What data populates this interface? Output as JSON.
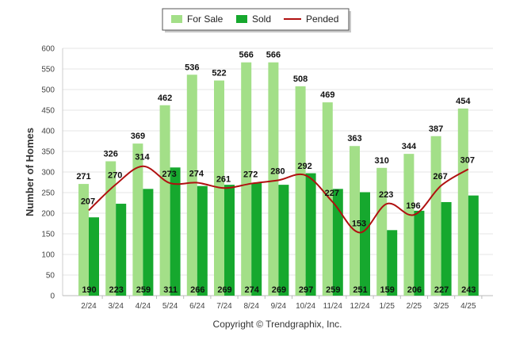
{
  "chart_data": {
    "type": "bar",
    "title": "",
    "xlabel": "",
    "ylabel": "Number of Homes",
    "ylim": [
      0,
      600
    ],
    "y_ticks": [
      0,
      50,
      100,
      150,
      200,
      250,
      300,
      350,
      400,
      450,
      500,
      550,
      600
    ],
    "grid": true,
    "legend_position": "top-center",
    "categories": [
      "2/24",
      "3/24",
      "4/24",
      "5/24",
      "6/24",
      "7/24",
      "8/24",
      "9/24",
      "10/24",
      "11/24",
      "12/24",
      "1/25",
      "2/25",
      "3/25",
      "4/25"
    ],
    "series": [
      {
        "name": "For Sale",
        "type": "bar",
        "color": "#a3df88",
        "values": [
          271,
          326,
          369,
          462,
          536,
          522,
          566,
          566,
          508,
          469,
          363,
          310,
          344,
          387,
          454
        ]
      },
      {
        "name": "Sold",
        "type": "bar",
        "color": "#16a82e",
        "values": [
          190,
          223,
          259,
          311,
          266,
          269,
          274,
          269,
          297,
          259,
          251,
          159,
          206,
          227,
          243
        ]
      },
      {
        "name": "Pended",
        "type": "line",
        "color": "#b01010",
        "values": [
          207,
          270,
          314,
          273,
          274,
          261,
          272,
          280,
          292,
          227,
          153,
          223,
          196,
          267,
          307
        ]
      }
    ]
  },
  "footer": {
    "copyright": "Copyright © Trendgraphix, Inc."
  }
}
